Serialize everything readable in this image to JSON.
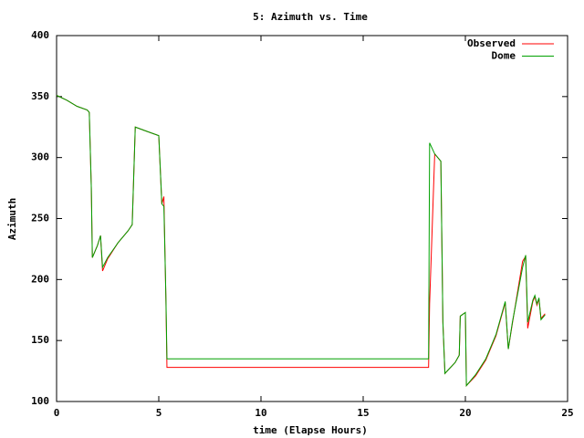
{
  "chart_data": {
    "type": "line",
    "title": "5: Azimuth vs. Time",
    "x_label": "time (Elapse Hours)",
    "y_label": "Azimuth",
    "x": [
      0,
      0.5,
      1.0,
      1.5,
      1.6,
      1.7,
      1.75,
      2.0,
      2.15,
      2.25,
      2.5,
      3.0,
      3.5,
      3.7,
      3.85,
      4.5,
      5.0,
      5.15,
      5.25,
      5.35,
      5.4,
      10,
      18.2,
      18.25,
      18.5,
      18.8,
      18.9,
      19.0,
      19.5,
      19.7,
      19.75,
      20.0,
      20.05,
      20.5,
      21.0,
      21.5,
      21.95,
      22.1,
      22.3,
      22.8,
      22.95,
      23.05,
      23.3,
      23.4,
      23.5,
      23.6,
      23.7,
      23.9
    ],
    "series": [
      {
        "name": "Observed",
        "color": "#ff0000",
        "values": [
          351,
          347,
          342,
          339,
          337,
          275,
          218,
          228,
          236,
          207,
          217,
          230,
          240,
          245,
          325,
          321,
          318,
          262,
          268,
          182,
          128,
          128,
          128,
          180,
          303,
          297,
          165,
          123,
          132,
          138,
          170,
          173,
          113,
          121,
          134,
          154,
          181,
          143,
          164,
          215,
          219,
          160,
          182,
          186,
          179,
          184,
          168,
          172
        ]
      },
      {
        "name": "Dome",
        "color": "#00a000",
        "values": [
          351,
          347,
          342,
          339,
          337,
          275,
          218,
          228,
          236,
          210,
          218,
          230,
          240,
          245,
          325,
          321,
          318,
          262,
          260,
          185,
          135,
          135,
          135,
          312,
          303,
          297,
          165,
          123,
          132,
          138,
          170,
          173,
          113,
          122,
          135,
          155,
          182,
          143,
          165,
          210,
          220,
          165,
          183,
          187,
          180,
          185,
          167,
          171
        ]
      }
    ],
    "xlim": [
      0,
      25
    ],
    "xticks": [
      0,
      5,
      10,
      15,
      20,
      25
    ],
    "ylim": [
      100,
      400
    ],
    "yticks": [
      100,
      150,
      200,
      250,
      300,
      350,
      400
    ],
    "legend": "top-right"
  }
}
